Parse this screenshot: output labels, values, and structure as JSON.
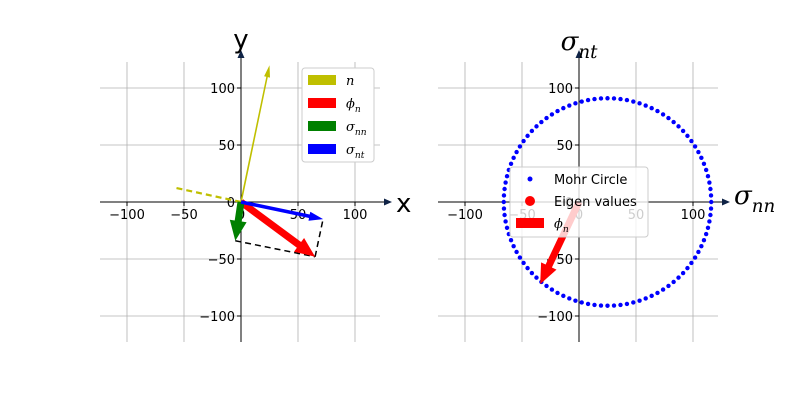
{
  "chart_data": [
    {
      "type": "vector-plot",
      "xlabel": "x",
      "ylabel": "y",
      "xlim": [
        -125,
        125
      ],
      "ylim": [
        -125,
        125
      ],
      "xticks": [
        -100,
        -50,
        0,
        50,
        100
      ],
      "yticks": [
        -100,
        -50,
        0,
        50,
        100
      ],
      "grid": true,
      "legend_position": "top-right",
      "legend": [
        {
          "label": "n",
          "color": "#bfbf00"
        },
        {
          "label": "ϕ",
          "sub": "n",
          "color": "#ff0000"
        },
        {
          "label": "σ",
          "sub": "nn",
          "color": "#008000"
        },
        {
          "label": "σ",
          "sub": "nt",
          "color": "#0000ff"
        }
      ],
      "vectors": [
        {
          "name": "n",
          "color": "#bfbf00",
          "x0": 0,
          "y0": 0,
          "x1": 25,
          "y1": 120,
          "style": "thin"
        },
        {
          "name": "phi_n",
          "color": "#ff0000",
          "x0": 0,
          "y0": 0,
          "x1": 65,
          "y1": -48,
          "style": "thick"
        },
        {
          "name": "sigma_nn",
          "color": "#008000",
          "x0": 0,
          "y0": 0,
          "x1": -5,
          "y1": -34,
          "style": "thick"
        },
        {
          "name": "sigma_nt",
          "color": "#0000ff",
          "x0": 0,
          "y0": 0,
          "x1": 72,
          "y1": -15,
          "style": "medium"
        }
      ],
      "dashed_lines": [
        {
          "color": "#bfbf00",
          "points": [
            [
              0,
              0
            ],
            [
              -60,
              13
            ]
          ]
        },
        {
          "color": "#000000",
          "points": [
            [
              -5,
              -34
            ],
            [
              65,
              -48
            ]
          ]
        },
        {
          "color": "#000000",
          "points": [
            [
              65,
              -48
            ],
            [
              72,
              -15
            ]
          ]
        }
      ]
    },
    {
      "type": "scatter",
      "xlabel": "σ",
      "xlabel_sub": "nn",
      "ylabel": "σ",
      "ylabel_sub": "nt",
      "xlim": [
        -125,
        125
      ],
      "ylim": [
        -125,
        125
      ],
      "xticks": [
        -100,
        -50,
        0,
        50,
        100
      ],
      "yticks": [
        -100,
        -50,
        0,
        50,
        100
      ],
      "grid": true,
      "legend_position": "center",
      "legend": [
        {
          "label": "Mohr Circle",
          "color": "#0000ff",
          "marker": "small-dot"
        },
        {
          "label": "Eigen values",
          "color": "#ff0000",
          "marker": "dot"
        },
        {
          "label": "ϕ",
          "sub": "n",
          "color": "#ff0000",
          "marker": "patch"
        }
      ],
      "circle": {
        "center_x": 25,
        "center_y": 0,
        "radius": 91,
        "points": 100,
        "color": "#0000ff"
      },
      "vectors": [
        {
          "name": "phi_n",
          "color": "#ff0000",
          "x0": 0,
          "y0": 0,
          "x1": -34,
          "y1": -72,
          "style": "thick"
        }
      ]
    }
  ]
}
